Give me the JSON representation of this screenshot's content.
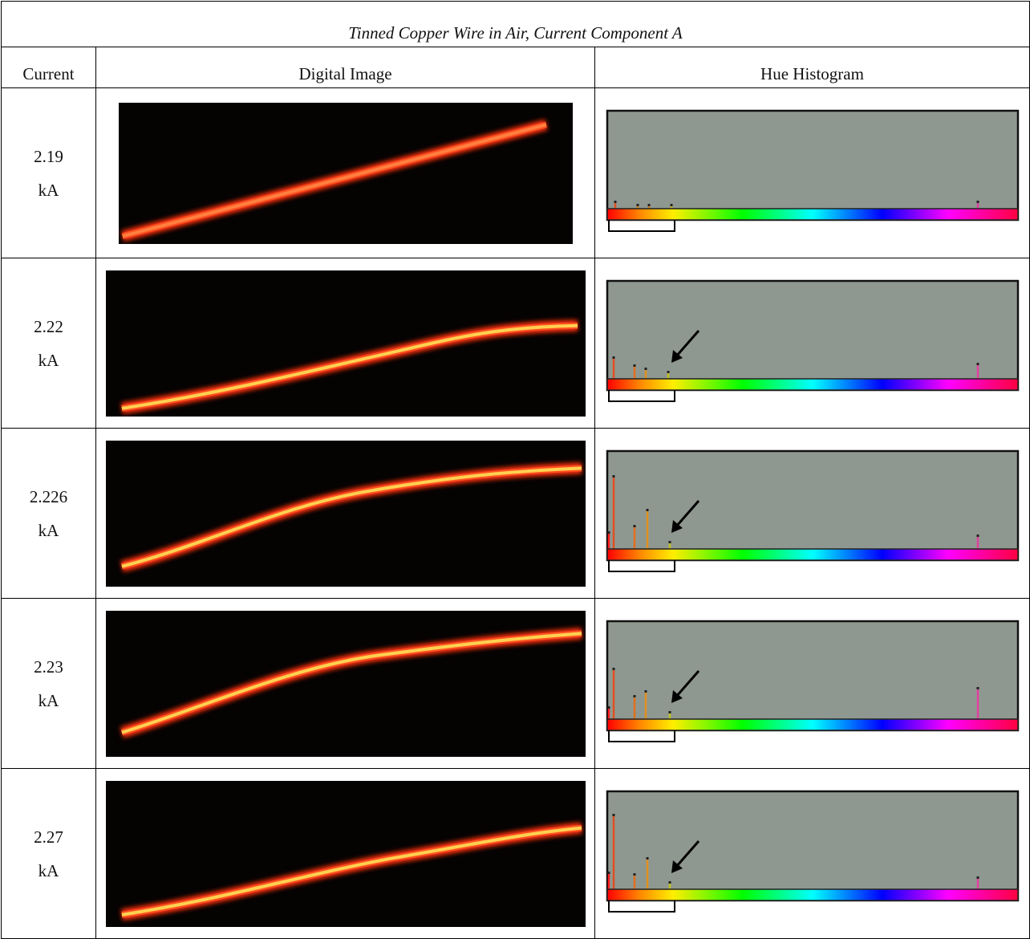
{
  "table": {
    "title": "Tinned Copper Wire in Air, Current Component A",
    "headers": [
      "Current",
      "Digital Image",
      "Hue Histogram"
    ],
    "rows": [
      {
        "current": "2.19 kA"
      },
      {
        "current": "2.22 kA"
      },
      {
        "current": "2.226 kA"
      },
      {
        "current": "2.23 kA"
      },
      {
        "current": "2.27 kA"
      }
    ]
  }
}
